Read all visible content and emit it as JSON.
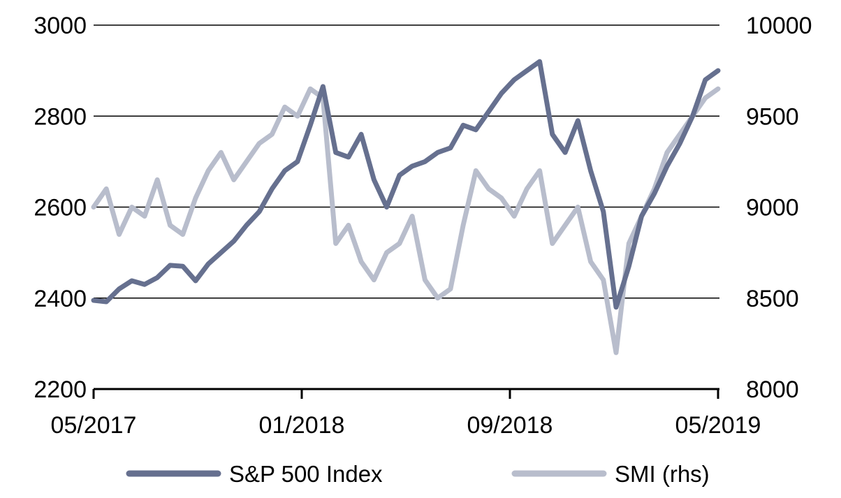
{
  "colors": {
    "sp500": "#66708F",
    "smi": "#B8BDCC",
    "grid": "#000000",
    "axis": "#000000"
  },
  "chart_data": {
    "type": "line",
    "title": "",
    "xlabel": "",
    "ylabel": "",
    "x_ticks": [
      "05/2017",
      "01/2018",
      "09/2018",
      "05/2019"
    ],
    "y_left": {
      "ticks": [
        "2200",
        "2400",
        "2600",
        "2800",
        "3000"
      ],
      "range": [
        2200,
        3000
      ]
    },
    "y_right": {
      "ticks": [
        "8000",
        "8500",
        "9000",
        "9500",
        "10000"
      ],
      "range": [
        8000,
        10000
      ]
    },
    "grid": "horizontal major gridlines",
    "legend": {
      "position": "bottom",
      "entries": [
        "S&P 500 Index",
        "SMI (rhs)"
      ]
    },
    "series": [
      {
        "name": "S&P 500 Index",
        "axis": "left",
        "color": "#66708F",
        "x": [
          "05/2017",
          "05/2017",
          "06/2017",
          "06/2017",
          "07/2017",
          "07/2017",
          "08/2017",
          "08/2017",
          "09/2017",
          "09/2017",
          "10/2017",
          "10/2017",
          "11/2017",
          "11/2017",
          "12/2017",
          "12/2017",
          "01/2018",
          "01/2018",
          "01/2018",
          "02/2018",
          "02/2018",
          "03/2018",
          "03/2018",
          "04/2018",
          "04/2018",
          "05/2018",
          "05/2018",
          "06/2018",
          "06/2018",
          "07/2018",
          "07/2018",
          "08/2018",
          "08/2018",
          "09/2018",
          "09/2018",
          "10/2018",
          "10/2018",
          "11/2018",
          "11/2018",
          "12/2018",
          "12/2018",
          "01/2019",
          "01/2019",
          "02/2019",
          "02/2019",
          "03/2019",
          "03/2019",
          "04/2019",
          "04/2019",
          "05/2019"
        ],
        "values": [
          2395,
          2392,
          2420,
          2438,
          2430,
          2445,
          2472,
          2470,
          2438,
          2475,
          2500,
          2525,
          2560,
          2590,
          2640,
          2680,
          2700,
          2780,
          2865,
          2720,
          2710,
          2760,
          2660,
          2600,
          2670,
          2690,
          2700,
          2720,
          2730,
          2780,
          2770,
          2810,
          2850,
          2880,
          2900,
          2920,
          2760,
          2720,
          2790,
          2680,
          2590,
          2380,
          2470,
          2580,
          2630,
          2690,
          2740,
          2800,
          2880,
          2900
        ]
      },
      {
        "name": "SMI (rhs)",
        "axis": "right",
        "color": "#B8BDCC",
        "x": [
          "05/2017",
          "05/2017",
          "06/2017",
          "06/2017",
          "07/2017",
          "07/2017",
          "08/2017",
          "08/2017",
          "09/2017",
          "09/2017",
          "10/2017",
          "10/2017",
          "11/2017",
          "11/2017",
          "12/2017",
          "12/2017",
          "01/2018",
          "01/2018",
          "01/2018",
          "02/2018",
          "02/2018",
          "03/2018",
          "03/2018",
          "04/2018",
          "04/2018",
          "05/2018",
          "05/2018",
          "06/2018",
          "06/2018",
          "07/2018",
          "07/2018",
          "08/2018",
          "08/2018",
          "09/2018",
          "09/2018",
          "10/2018",
          "10/2018",
          "11/2018",
          "11/2018",
          "12/2018",
          "12/2018",
          "01/2019",
          "01/2019",
          "02/2019",
          "02/2019",
          "03/2019",
          "03/2019",
          "04/2019",
          "04/2019",
          "05/2019"
        ],
        "values": [
          9000,
          9100,
          8850,
          9000,
          8950,
          9150,
          8900,
          8850,
          9050,
          9200,
          9300,
          9150,
          9250,
          9350,
          9400,
          9550,
          9500,
          9650,
          9600,
          8800,
          8900,
          8700,
          8600,
          8750,
          8800,
          8950,
          8600,
          8500,
          8550,
          8900,
          9200,
          9100,
          9050,
          8950,
          9100,
          9200,
          8800,
          8900,
          9000,
          8700,
          8600,
          8200,
          8800,
          8950,
          9100,
          9300,
          9400,
          9500,
          9600,
          9650
        ]
      }
    ]
  }
}
